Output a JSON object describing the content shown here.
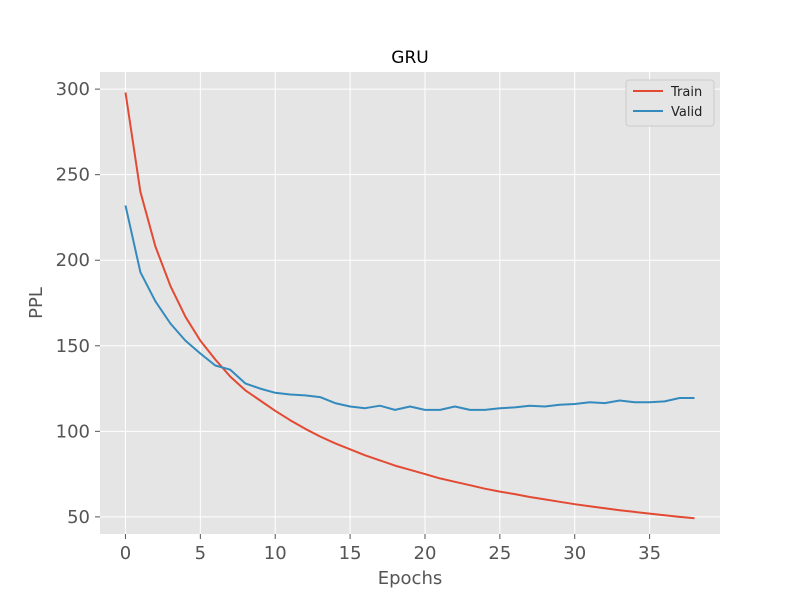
{
  "chart_data": {
    "type": "line",
    "title": "GRU",
    "xlabel": "Epochs",
    "ylabel": "PPL",
    "xlim": [
      -1.7,
      39.7
    ],
    "ylim": [
      40,
      310
    ],
    "xticks": [
      0,
      5,
      10,
      15,
      20,
      25,
      30,
      35
    ],
    "yticks": [
      50,
      100,
      150,
      200,
      250,
      300
    ],
    "grid": true,
    "legend_position": "top-right",
    "x": [
      0,
      1,
      2,
      3,
      4,
      5,
      6,
      7,
      8,
      9,
      10,
      11,
      12,
      13,
      14,
      15,
      16,
      17,
      18,
      19,
      20,
      21,
      22,
      23,
      24,
      25,
      26,
      27,
      28,
      29,
      30,
      31,
      32,
      33,
      34,
      35,
      36,
      37,
      38
    ],
    "series": [
      {
        "name": "Train",
        "color": "#E24A33",
        "values": [
          298,
          240,
          208,
          185,
          167,
          153,
          142,
          132,
          124,
          118,
          112,
          106.5,
          101.5,
          97,
          93,
          89.5,
          86,
          83,
          80,
          77.5,
          75,
          72.5,
          70.5,
          68.5,
          66.5,
          64.8,
          63.3,
          61.6,
          60.2,
          58.8,
          57.4,
          56.2,
          55,
          53.9,
          52.9,
          51.9,
          51,
          50,
          49.2
        ]
      },
      {
        "name": "Valid",
        "color": "#348ABD",
        "values": [
          232,
          193,
          176,
          163,
          153,
          145.5,
          138.5,
          136,
          128,
          125,
          122.5,
          121.5,
          121,
          120,
          116.5,
          114.5,
          113.5,
          115,
          112.5,
          114.5,
          112.5,
          112.5,
          114.5,
          112.5,
          112.5,
          113.5,
          114,
          115,
          114.5,
          115.5,
          116,
          117,
          116.5,
          118,
          117,
          117,
          117.5,
          119.5,
          119.5
        ]
      }
    ]
  }
}
